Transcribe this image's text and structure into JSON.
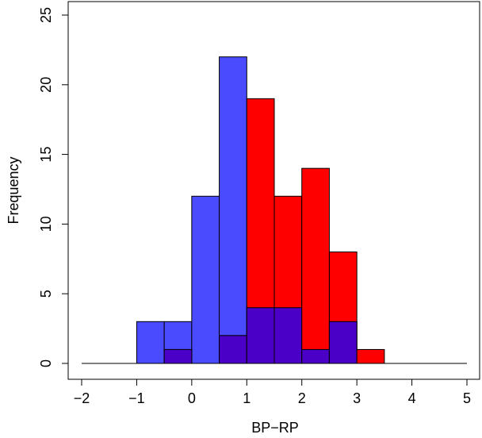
{
  "chart_data": {
    "type": "bar",
    "title": "",
    "xlabel": "BP−RP",
    "ylabel": "Frequency",
    "xlim": [
      -2,
      5
    ],
    "ylim": [
      0,
      25
    ],
    "x_ticks": [
      {
        "value": -2,
        "label": "−2"
      },
      {
        "value": -1,
        "label": "−1"
      },
      {
        "value": 0,
        "label": "0"
      },
      {
        "value": 1,
        "label": "1"
      },
      {
        "value": 2,
        "label": "2"
      },
      {
        "value": 3,
        "label": "3"
      },
      {
        "value": 4,
        "label": "4"
      },
      {
        "value": 5,
        "label": "5"
      }
    ],
    "y_ticks": [
      {
        "value": 0,
        "label": "0"
      },
      {
        "value": 5,
        "label": "5"
      },
      {
        "value": 10,
        "label": "10"
      },
      {
        "value": 15,
        "label": "15"
      },
      {
        "value": 20,
        "label": "20"
      },
      {
        "value": 25,
        "label": "25"
      }
    ],
    "bin_width": 0.5,
    "grid": false,
    "series": [
      {
        "color": "#4a4aff",
        "bins": [
          {
            "x0": -1.0,
            "x1": -0.5,
            "count": 3
          },
          {
            "x0": -0.5,
            "x1": 0.0,
            "count": 3
          },
          {
            "x0": 0.0,
            "x1": 0.5,
            "count": 12
          },
          {
            "x0": 0.5,
            "x1": 1.0,
            "count": 22
          },
          {
            "x0": 1.0,
            "x1": 1.5,
            "count": 4
          },
          {
            "x0": 1.5,
            "x1": 2.0,
            "count": 4
          },
          {
            "x0": 2.0,
            "x1": 2.5,
            "count": 1
          },
          {
            "x0": 2.5,
            "x1": 3.0,
            "count": 3
          }
        ]
      },
      {
        "color": "#ff0000",
        "bins": [
          {
            "x0": -0.5,
            "x1": 0.0,
            "count": 1
          },
          {
            "x0": 0.5,
            "x1": 1.0,
            "count": 2
          },
          {
            "x0": 1.0,
            "x1": 1.5,
            "count": 19
          },
          {
            "x0": 1.5,
            "x1": 2.0,
            "count": 12
          },
          {
            "x0": 2.0,
            "x1": 2.5,
            "count": 14
          },
          {
            "x0": 2.5,
            "x1": 3.0,
            "count": 8
          },
          {
            "x0": 3.0,
            "x1": 3.5,
            "count": 1
          }
        ]
      }
    ],
    "overlap_color": "#4b00c8"
  }
}
